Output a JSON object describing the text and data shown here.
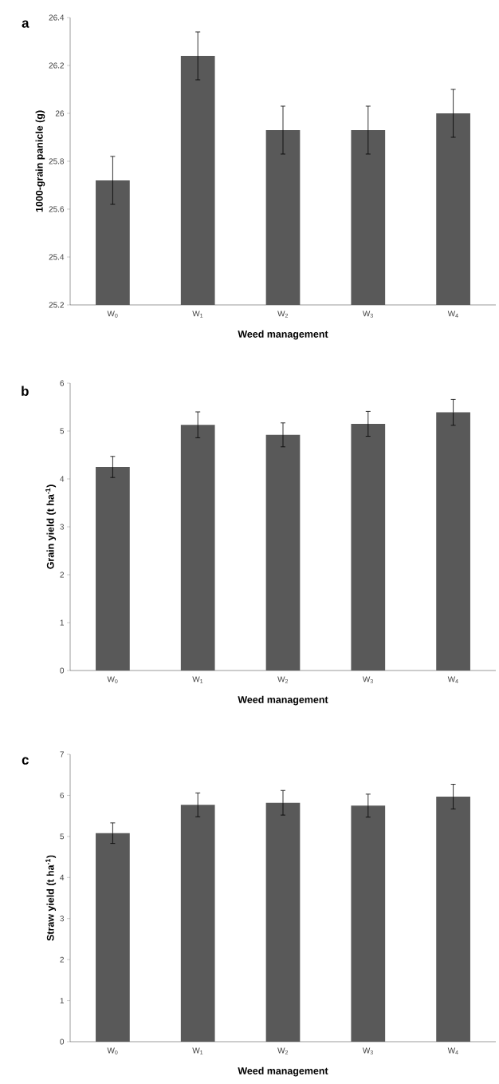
{
  "chart_data": [
    {
      "type": "bar",
      "title": "a",
      "xlabel": "Weed management",
      "ylabel": "1000-grain panicle (g)",
      "categories": [
        "W$_{0}$",
        "W$_{1}$",
        "W$_{2}$",
        "W$_{3}$",
        "W$_{4}$"
      ],
      "values": [
        25.72,
        26.24,
        25.93,
        25.93,
        26.0
      ],
      "errors": [
        0.1,
        0.1,
        0.1,
        0.1,
        0.1
      ],
      "color": "#595959",
      "ylim": [
        25.2,
        26.4
      ],
      "yticks": [
        25.2,
        25.4,
        25.6,
        25.8,
        26,
        26.2,
        26.4
      ]
    },
    {
      "type": "bar",
      "title": "b",
      "xlabel": "Weed management",
      "ylabel": "Grain yield (t ha$^{-1}$)",
      "categories": [
        "W$_{0}$",
        "W$_{1}$",
        "W$_{2}$",
        "W$_{3}$",
        "W$_{4}$"
      ],
      "values": [
        4.25,
        5.13,
        4.92,
        5.15,
        5.39
      ],
      "errors": [
        0.22,
        0.27,
        0.25,
        0.26,
        0.27
      ],
      "color": "#595959",
      "ylim": [
        0,
        6
      ],
      "yticks": [
        0,
        1,
        2,
        3,
        4,
        5,
        6
      ]
    },
    {
      "type": "bar",
      "title": "c",
      "xlabel": "Weed management",
      "ylabel": "Straw yield (t ha$^{-1}$)",
      "categories": [
        "W$_{0}$",
        "W$_{1}$",
        "W$_{2}$",
        "W$_{3}$",
        "W$_{4}$"
      ],
      "values": [
        5.08,
        5.77,
        5.82,
        5.75,
        5.97
      ],
      "errors": [
        0.25,
        0.29,
        0.3,
        0.28,
        0.3
      ],
      "color": "#595959",
      "ylim": [
        0,
        7
      ],
      "yticks": [
        0,
        1,
        2,
        3,
        4,
        5,
        6,
        7
      ]
    }
  ]
}
